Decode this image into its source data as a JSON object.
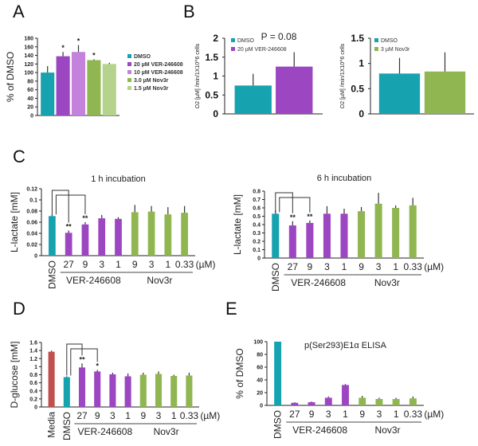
{
  "panels": [
    "A",
    "B",
    "C",
    "D",
    "E"
  ],
  "colors": {
    "dmso": "#17a2b0",
    "ver": "#9c46c2",
    "ver_light": "#c383dc",
    "nov": "#8fb650",
    "nov_light": "#b6d38e",
    "media": "#c0504d"
  },
  "chart_data": [
    {
      "type": "bar",
      "panel": "A",
      "title": "",
      "ylabel": "% of DMSO",
      "ylim": [
        0,
        180
      ],
      "yticks": [
        0,
        20,
        40,
        60,
        80,
        100,
        120,
        140,
        160,
        180
      ],
      "categories": [
        "DMSO",
        "20 µM VER-246608",
        "10 µM VER-246608",
        "3.0 µM Nov3r",
        "1.5 µM Nov3r"
      ],
      "values": [
        100,
        138,
        148,
        129,
        120
      ],
      "errors": [
        15,
        10,
        16,
        2,
        3
      ],
      "significance": [
        "",
        "*",
        "*",
        "*",
        ""
      ],
      "legend": [
        "DMSO",
        "20 µM VER-246608",
        "10 µM VER-246608",
        "3.0 µM Nov3r",
        "1.5 µM Nov3r"
      ],
      "legend_position": "right",
      "show_categories": false
    },
    {
      "type": "bar",
      "panel": "B",
      "title": "",
      "annotation": "P = 0.08",
      "ylabel": "O2 [µM] /min/1X10^6 cells",
      "ylim": [
        0,
        2
      ],
      "yticks": [
        0,
        0.5,
        1,
        1.5,
        2
      ],
      "categories": [
        "DMSO",
        "20 µM VER-246608"
      ],
      "values": [
        0.75,
        1.25
      ],
      "errors": [
        0.31,
        0.38
      ],
      "significance": [
        "",
        ""
      ],
      "legend": [
        "DMSO",
        "20 µM VER-246608"
      ],
      "legend_position": "top-left",
      "show_categories": false
    },
    {
      "type": "bar",
      "panel": "",
      "title": "",
      "ylabel": "O2 [µM] /min/1X10^6 cells",
      "ylim": [
        0,
        1.5
      ],
      "yticks": [
        0,
        0.5,
        1,
        1.5
      ],
      "categories": [
        "DMSO",
        "3 µM Nov3r"
      ],
      "values": [
        0.8,
        0.84
      ],
      "errors": [
        0.31,
        0.38
      ],
      "significance": [
        "",
        ""
      ],
      "legend": [
        "DMSO",
        "3 µM Nov3r"
      ],
      "legend_position": "top-left",
      "show_categories": false
    },
    {
      "type": "bar",
      "panel": "C",
      "title": "1 h incubation",
      "ylabel": "L-lactate [mM]",
      "ylim": [
        0,
        0.12
      ],
      "yticks": [
        0,
        0.02,
        0.04,
        0.06,
        0.08,
        0.1,
        0.12
      ],
      "categories": [
        "DMSO",
        "27",
        "9",
        "3",
        "1",
        "9",
        "3",
        "1",
        "0.33"
      ],
      "unit": "(µM)",
      "groups": [
        {
          "label": "VER-246608",
          "from": 1,
          "to": 4
        },
        {
          "label": "Nov3r",
          "from": 5,
          "to": 8
        }
      ],
      "values": [
        0.071,
        0.041,
        0.056,
        0.067,
        0.066,
        0.078,
        0.079,
        0.074,
        0.077
      ],
      "errors": [
        0.003,
        0.004,
        0.004,
        0.006,
        0.003,
        0.013,
        0.01,
        0.013,
        0.012
      ],
      "significance": [
        "",
        "**",
        "**",
        "",
        "",
        "",
        "",
        "",
        ""
      ],
      "comparisons": [
        [
          0,
          1
        ],
        [
          0,
          2
        ]
      ],
      "show_categories": true
    },
    {
      "type": "bar",
      "panel": "",
      "title": "6 h incubation",
      "ylabel": "L-lactate [mM]",
      "ylim": [
        0,
        0.8
      ],
      "yticks": [
        0,
        0.1,
        0.2,
        0.3,
        0.4,
        0.5,
        0.6,
        0.7,
        0.8
      ],
      "categories": [
        "DMSO",
        "27",
        "9",
        "3",
        "1",
        "9",
        "3",
        "1",
        "0.33"
      ],
      "unit": "(µM)",
      "groups": [
        {
          "label": "VER-246608",
          "from": 1,
          "to": 4
        },
        {
          "label": "Nov3r",
          "from": 5,
          "to": 8
        }
      ],
      "values": [
        0.53,
        0.39,
        0.42,
        0.53,
        0.53,
        0.56,
        0.65,
        0.6,
        0.63
      ],
      "errors": [
        0.04,
        0.05,
        0.03,
        0.09,
        0.06,
        0.05,
        0.13,
        0.03,
        0.09
      ],
      "significance": [
        "",
        "**",
        "**",
        "",
        "",
        "",
        "",
        "",
        ""
      ],
      "comparisons": [
        [
          0,
          1
        ],
        [
          0,
          2
        ]
      ],
      "show_categories": true
    },
    {
      "type": "bar",
      "panel": "D",
      "title": "",
      "ylabel": "D-glucose [mM]",
      "ylim": [
        0,
        1.6
      ],
      "yticks": [
        0,
        0.2,
        0.4,
        0.6,
        0.8,
        1,
        1.2,
        1.4,
        1.6
      ],
      "categories": [
        "Media",
        "DMSO",
        "27",
        "9",
        "3",
        "1",
        "9",
        "3",
        "1",
        "0.33"
      ],
      "unit": "(µM)",
      "groups": [
        {
          "label": "VER-246608",
          "from": 2,
          "to": 5
        },
        {
          "label": "Nov3r",
          "from": 6,
          "to": 9
        }
      ],
      "values": [
        1.37,
        0.74,
        0.98,
        0.88,
        0.81,
        0.76,
        0.8,
        0.82,
        0.77,
        0.78
      ],
      "errors": [
        0.03,
        0.02,
        0.1,
        0.04,
        0.04,
        0.07,
        0.05,
        0.06,
        0.03,
        0.07
      ],
      "significance": [
        "",
        "",
        "**",
        "*",
        "",
        "",
        "",
        "",
        "",
        ""
      ],
      "comparisons": [
        [
          1,
          2
        ],
        [
          1,
          3
        ]
      ],
      "show_categories": true
    },
    {
      "type": "bar",
      "panel": "E",
      "title": "p(Ser293)E1α ELISA",
      "ylabel": "% of DMSO",
      "ylim": [
        0,
        100
      ],
      "yticks": [
        0,
        20,
        40,
        60,
        80,
        100
      ],
      "categories": [
        "DMSO",
        "27",
        "9",
        "3",
        "1",
        "9",
        "3",
        "1",
        "0.33"
      ],
      "unit": "(µM)",
      "groups": [
        {
          "label": "VER-246608",
          "from": 1,
          "to": 4
        },
        {
          "label": "Nov3r",
          "from": 5,
          "to": 8
        }
      ],
      "values": [
        100,
        4,
        5,
        12,
        32,
        12,
        10,
        10,
        11
      ],
      "errors": [
        0,
        1,
        1,
        2,
        1.5,
        3,
        2,
        2,
        3
      ],
      "significance": [
        "",
        "",
        "",
        "",
        "",
        "",
        "",
        "",
        ""
      ],
      "show_categories": true
    }
  ]
}
